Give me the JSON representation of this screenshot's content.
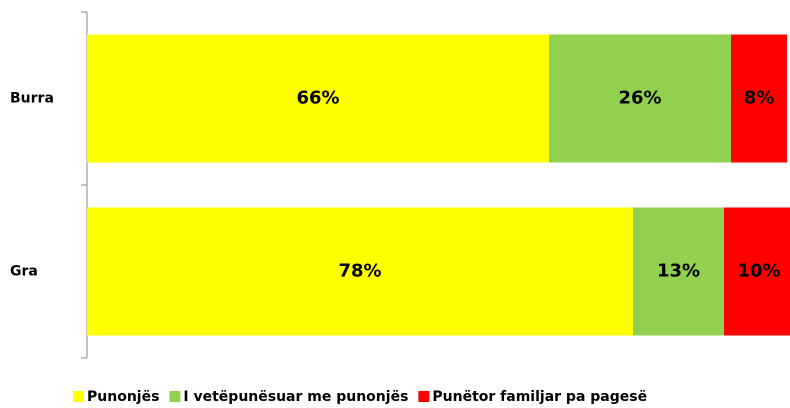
{
  "chart_data": {
    "type": "stacked_bar_horizontal",
    "categories": [
      "Burra",
      "Gra"
    ],
    "series": [
      {
        "name": "Punonjës",
        "color": "#ffff00",
        "values": [
          66,
          78
        ],
        "value_labels": [
          "66%",
          "78%"
        ]
      },
      {
        "name": "I vetëpunësuar me punonjës",
        "color": "#92d050",
        "values": [
          26,
          13
        ],
        "value_labels": [
          "26%",
          "13%"
        ]
      },
      {
        "name": "Punëtor familjar pa pagesë",
        "color": "#ff0000",
        "values": [
          8,
          10
        ],
        "value_labels": [
          "8%",
          "10%"
        ]
      }
    ],
    "xlim": [
      0,
      100
    ]
  }
}
